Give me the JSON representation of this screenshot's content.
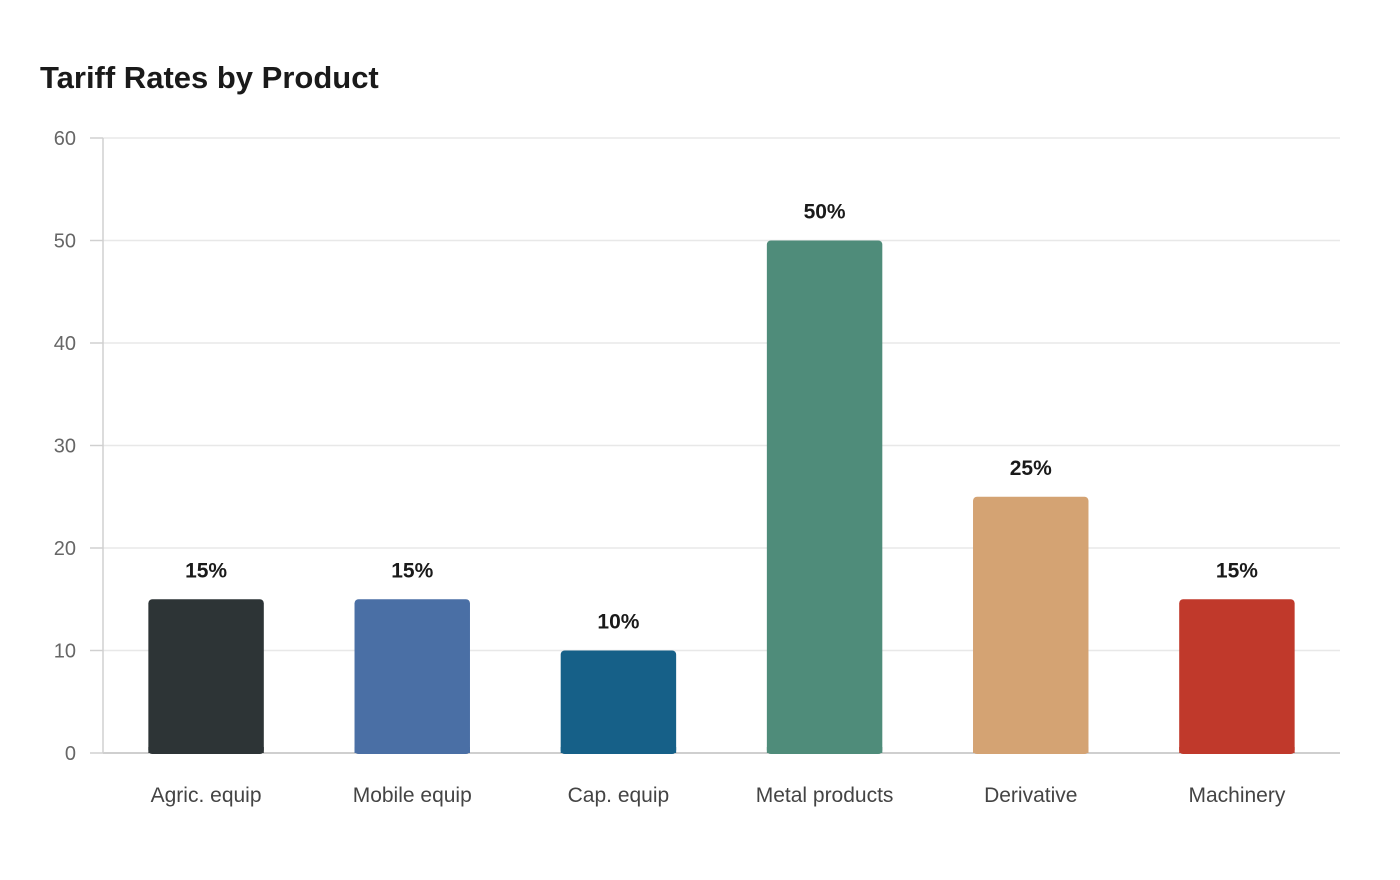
{
  "chart_data": {
    "type": "bar",
    "title": "Tariff Rates by Product",
    "xlabel": "",
    "ylabel": "",
    "categories": [
      "Agric. equip",
      "Mobile equip",
      "Cap. equip",
      "Metal products",
      "Derivative",
      "Machinery"
    ],
    "values": [
      15,
      15,
      10,
      50,
      25,
      15
    ],
    "data_labels": [
      "15%",
      "15%",
      "10%",
      "50%",
      "25%",
      "15%"
    ],
    "colors": [
      "#2d3436",
      "#4a6fa5",
      "#166088",
      "#4f8c7a",
      "#d4a373",
      "#c0392b"
    ],
    "ylim": [
      0,
      60
    ],
    "yticks": [
      0,
      10,
      20,
      30,
      40,
      50,
      60
    ],
    "grid": true,
    "legend": "none"
  }
}
